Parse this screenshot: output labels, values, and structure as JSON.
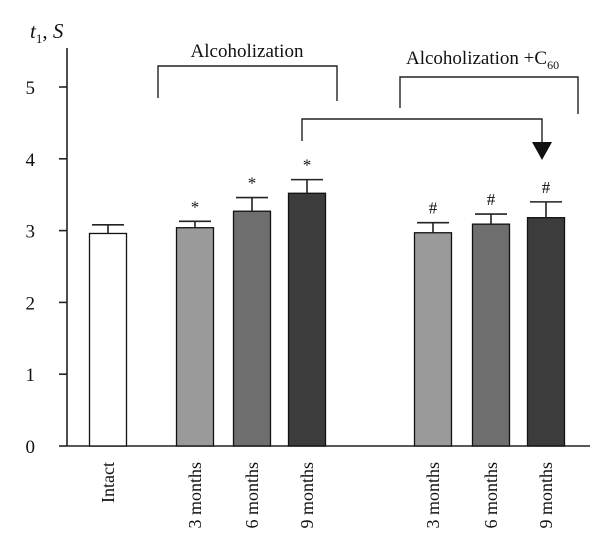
{
  "chart_data": {
    "type": "bar",
    "ylabel": "t1, S",
    "ylim": [
      0,
      5
    ],
    "y_ticks": [
      0,
      1,
      2,
      3,
      4,
      5
    ],
    "categories": [
      "Intact",
      "3 months",
      "6 months",
      "9 months",
      "3 months",
      "6 months",
      "9 months"
    ],
    "values": [
      2.96,
      3.04,
      3.27,
      3.52,
      2.97,
      3.09,
      3.18
    ],
    "errors": [
      0.12,
      0.09,
      0.19,
      0.19,
      0.14,
      0.14,
      0.22
    ],
    "significance_marks": [
      "",
      "*",
      "*",
      "*",
      "#",
      "#",
      "#"
    ],
    "bar_colors": [
      "#ffffff",
      "#9a9a9a",
      "#6e6e6e",
      "#3c3c3c",
      "#9a9a9a",
      "#6e6e6e",
      "#3c3c3c"
    ],
    "groups": [
      {
        "label": "Alcoholization",
        "members": [
          1,
          2,
          3
        ]
      },
      {
        "label": "Alcoholization +C",
        "label_subscript": "60",
        "members": [
          4,
          5,
          6
        ]
      }
    ],
    "comparison_arrow": {
      "from": 3,
      "to": 6
    },
    "grid": false
  }
}
